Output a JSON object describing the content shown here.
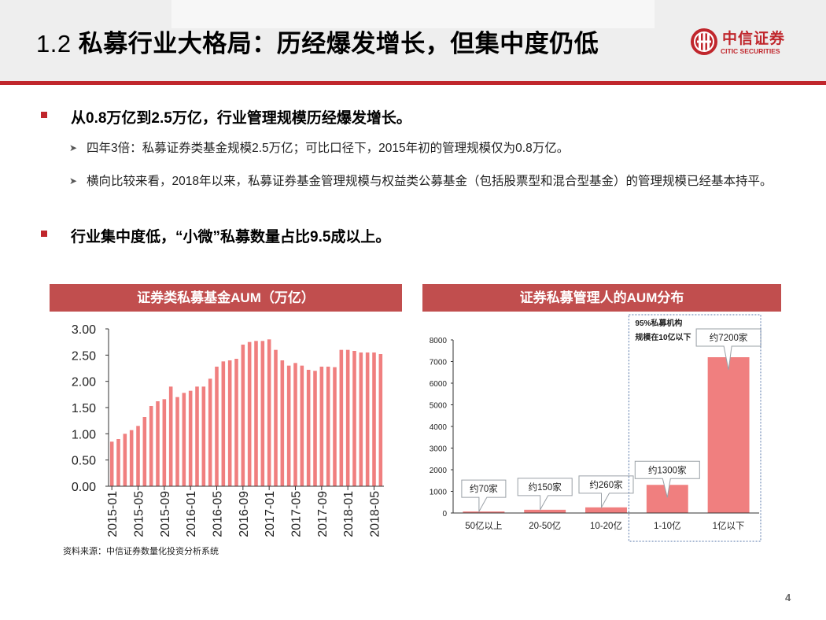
{
  "header": {
    "title_num": "1.2 ",
    "title_text": "私募行业大格局：历经爆发增长，但集中度仍低",
    "logo_cn": "中信证券",
    "logo_en": "CITIC SECURITIES"
  },
  "bullets": [
    {
      "text": "从0.8万亿到2.5万亿，行业管理规模历经爆发增长。"
    },
    {
      "text": "行业集中度低，“小微”私募数量占比9.5成以上。"
    }
  ],
  "sub_bullets": [
    {
      "text": "四年3倍：私募证券类基金规模2.5万亿；可比口径下，2015年初的管理规模仅为0.8万亿。"
    },
    {
      "text": "横向比较来看，2018年以来，私募证券基金管理规模与权益类公募基金（包括股票型和混合型基金）的管理规模已经基本持平。"
    }
  ],
  "panels": {
    "left_title": "证券类私募基金AUM（万亿）",
    "right_title": "证券私募管理人的AUM分布"
  },
  "source": "资料来源：中信证券数量化投资分析系统",
  "page_number": "4",
  "colors": {
    "accent": "#c0262c",
    "bar": "#f07f7f",
    "panel_header": "#c14e4e"
  },
  "chart_data": [
    {
      "type": "bar",
      "title": "证券类私募基金AUM（万亿）",
      "ylim": [
        0,
        3.0
      ],
      "yticks": [
        "3.00",
        "2.50",
        "2.00",
        "1.50",
        "1.00",
        "0.50",
        "0.00"
      ],
      "xtick_labels": [
        "2015-01",
        "2015-05",
        "2015-09",
        "2016-01",
        "2016-05",
        "2016-09",
        "2017-01",
        "2017-05",
        "2017-09",
        "2018-01",
        "2018-05"
      ],
      "x": [
        "2015-01",
        "2015-02",
        "2015-03",
        "2015-04",
        "2015-05",
        "2015-06",
        "2015-07",
        "2015-08",
        "2015-09",
        "2015-10",
        "2015-11",
        "2015-12",
        "2016-01",
        "2016-02",
        "2016-03",
        "2016-04",
        "2016-05",
        "2016-06",
        "2016-07",
        "2016-08",
        "2016-09",
        "2016-10",
        "2016-11",
        "2016-12",
        "2017-01",
        "2017-02",
        "2017-03",
        "2017-04",
        "2017-05",
        "2017-06",
        "2017-07",
        "2017-08",
        "2017-09",
        "2017-10",
        "2017-11",
        "2017-12",
        "2018-01",
        "2018-02",
        "2018-03",
        "2018-04",
        "2018-05",
        "2018-06"
      ],
      "values": [
        0.85,
        0.9,
        1.0,
        1.07,
        1.15,
        1.32,
        1.53,
        1.62,
        1.66,
        1.9,
        1.7,
        1.78,
        1.82,
        1.9,
        1.9,
        2.05,
        2.28,
        2.38,
        2.4,
        2.43,
        2.7,
        2.75,
        2.77,
        2.77,
        2.8,
        2.6,
        2.4,
        2.3,
        2.35,
        2.3,
        2.22,
        2.2,
        2.28,
        2.28,
        2.27,
        2.6,
        2.6,
        2.58,
        2.55,
        2.55,
        2.55,
        2.52
      ],
      "grid": false
    },
    {
      "type": "bar",
      "title": "证券私募管理人的AUM分布",
      "categories": [
        "50亿以上",
        "20-50亿",
        "10-20亿",
        "1-10亿",
        "1亿以下"
      ],
      "values": [
        70,
        150,
        260,
        1300,
        7200
      ],
      "labels": [
        "约70家",
        "约150家",
        "约260家",
        "约1300家",
        "约7200家"
      ],
      "ylim": [
        0,
        8000
      ],
      "yticks": [
        "8000",
        "7000",
        "6000",
        "5000",
        "4000",
        "3000",
        "2000",
        "1000",
        "0"
      ],
      "annotation": [
        "95%私募机构",
        "规模在10亿以下"
      ],
      "grid": false
    }
  ]
}
